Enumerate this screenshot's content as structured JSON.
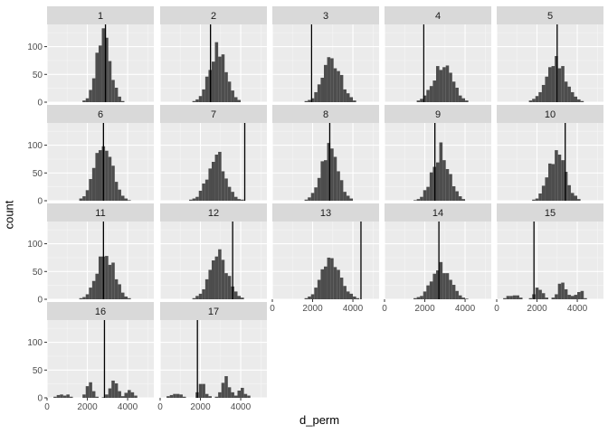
{
  "chart_data": {
    "type": "faceted_histogram",
    "title": "",
    "xlabel": "d_perm",
    "ylabel": "count",
    "xlim": [
      0,
      5300
    ],
    "ylim": [
      0,
      140
    ],
    "x_ticks": [
      0,
      2000,
      4000
    ],
    "y_ticks": [
      0,
      50,
      100
    ],
    "x_tick_labels": [
      "0",
      "2000",
      "4000"
    ],
    "y_tick_labels": [
      "0",
      "50",
      "100"
    ],
    "bin_width": 160,
    "facets": [
      {
        "label": "1",
        "center": 2800,
        "sd": 340,
        "peak": 130,
        "observed": 2900,
        "shape": "normal"
      },
      {
        "label": "2",
        "center": 2850,
        "sd": 420,
        "peak": 100,
        "observed": 2500,
        "shape": "normal"
      },
      {
        "label": "3",
        "center": 2950,
        "sd": 450,
        "peak": 75,
        "observed": 1950,
        "shape": "normal"
      },
      {
        "label": "4",
        "center": 2900,
        "sd": 480,
        "peak": 70,
        "observed": 1950,
        "shape": "normal"
      },
      {
        "label": "5",
        "center": 2950,
        "sd": 480,
        "peak": 75,
        "observed": 3000,
        "shape": "normal"
      },
      {
        "label": "6",
        "center": 2800,
        "sd": 430,
        "peak": 100,
        "observed": 2800,
        "shape": "normal"
      },
      {
        "label": "7",
        "center": 2800,
        "sd": 450,
        "peak": 80,
        "observed": 4200,
        "shape": "normal"
      },
      {
        "label": "8",
        "center": 2850,
        "sd": 420,
        "peak": 95,
        "observed": 2850,
        "shape": "normal"
      },
      {
        "label": "9",
        "center": 2800,
        "sd": 430,
        "peak": 90,
        "observed": 2500,
        "shape": "normal"
      },
      {
        "label": "10",
        "center": 3000,
        "sd": 420,
        "peak": 85,
        "observed": 3400,
        "shape": "normal"
      },
      {
        "label": "11",
        "center": 2900,
        "sd": 440,
        "peak": 85,
        "observed": 2800,
        "shape": "normal"
      },
      {
        "label": "12",
        "center": 2900,
        "sd": 450,
        "peak": 80,
        "observed": 3600,
        "shape": "normal"
      },
      {
        "label": "13",
        "center": 2950,
        "sd": 470,
        "peak": 75,
        "observed": 4400,
        "shape": "normal"
      },
      {
        "label": "14",
        "center": 2800,
        "sd": 470,
        "peak": 60,
        "observed": 2700,
        "shape": "normal"
      },
      {
        "label": "15",
        "center": 3000,
        "sd": 650,
        "peak": 50,
        "observed": 1850,
        "shape": "multimodal"
      },
      {
        "label": "16",
        "center": 3000,
        "sd": 700,
        "peak": 45,
        "observed": 2850,
        "shape": "multimodal"
      },
      {
        "label": "17",
        "center": 3000,
        "sd": 680,
        "peak": 50,
        "observed": 1850,
        "shape": "multimodal"
      }
    ]
  }
}
